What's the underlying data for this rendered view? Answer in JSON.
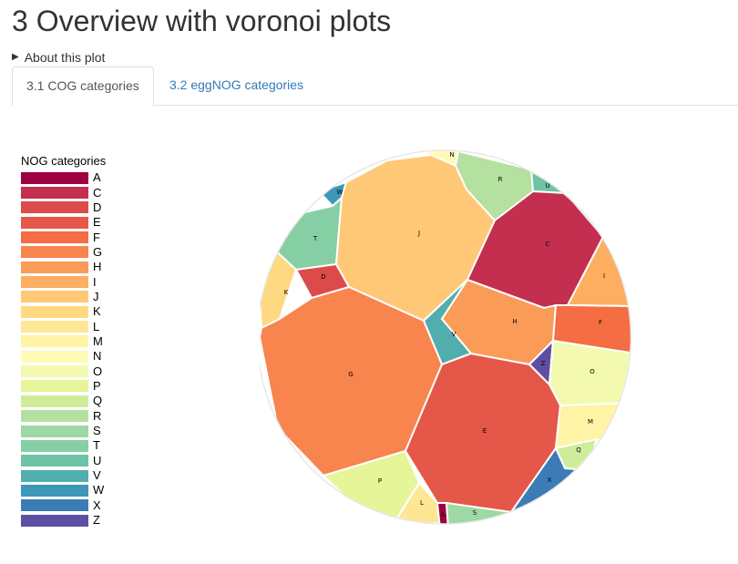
{
  "page": {
    "title": "3 Overview with voronoi plots",
    "details_label": "About this plot"
  },
  "tabs": [
    {
      "label": "3.1 COG categories",
      "active": true
    },
    {
      "label": "3.2 eggNOG categories",
      "active": false
    }
  ],
  "legend": {
    "title": "NOG categories",
    "items": [
      {
        "label": "A",
        "color": "#9e0142"
      },
      {
        "label": "C",
        "color": "#c42e4f"
      },
      {
        "label": "D",
        "color": "#dd4a4c"
      },
      {
        "label": "E",
        "color": "#e55749"
      },
      {
        "label": "F",
        "color": "#f46d43"
      },
      {
        "label": "G",
        "color": "#f8844e"
      },
      {
        "label": "H",
        "color": "#fa9b57"
      },
      {
        "label": "I",
        "color": "#fdae61"
      },
      {
        "label": "J",
        "color": "#fec877"
      },
      {
        "label": "K",
        "color": "#fed982"
      },
      {
        "label": "L",
        "color": "#fee794"
      },
      {
        "label": "M",
        "color": "#fff3a6"
      },
      {
        "label": "N",
        "color": "#fffbb6"
      },
      {
        "label": "O",
        "color": "#f3fab0"
      },
      {
        "label": "P",
        "color": "#e6f598"
      },
      {
        "label": "Q",
        "color": "#cfec9a"
      },
      {
        "label": "R",
        "color": "#b4e0a0"
      },
      {
        "label": "S",
        "color": "#9ed8a4"
      },
      {
        "label": "T",
        "color": "#86cfa5"
      },
      {
        "label": "U",
        "color": "#6cc3a6"
      },
      {
        "label": "V",
        "color": "#52aeae"
      },
      {
        "label": "W",
        "color": "#3e96b8"
      },
      {
        "label": "X",
        "color": "#3b7cb6"
      },
      {
        "label": "Z",
        "color": "#5e4fa2"
      }
    ]
  },
  "voronoi_cells": [
    {
      "label": "N",
      "color": "#fffbb6"
    },
    {
      "label": "R",
      "color": "#b4e0a0"
    },
    {
      "label": "U",
      "color": "#6cc3a6"
    },
    {
      "label": "W",
      "color": "#3e96b8"
    },
    {
      "label": "T",
      "color": "#86cfa5"
    },
    {
      "label": "J",
      "color": "#fec877"
    },
    {
      "label": "C",
      "color": "#c42e4f"
    },
    {
      "label": "I",
      "color": "#fdae61"
    },
    {
      "label": "K",
      "color": "#fed982"
    },
    {
      "label": "D",
      "color": "#dd4a4c"
    },
    {
      "label": "H",
      "color": "#fa9b57"
    },
    {
      "label": "F",
      "color": "#f46d43"
    },
    {
      "label": "V",
      "color": "#52aeae"
    },
    {
      "label": "Z",
      "color": "#5e4fa2"
    },
    {
      "label": "O",
      "color": "#f3fab0"
    },
    {
      "label": "G",
      "color": "#f8844e"
    },
    {
      "label": "E",
      "color": "#e55749"
    },
    {
      "label": "M",
      "color": "#fff3a6"
    },
    {
      "label": "Q",
      "color": "#cfec9a"
    },
    {
      "label": "X",
      "color": "#3b7cb6"
    },
    {
      "label": "P",
      "color": "#e6f598"
    },
    {
      "label": "L",
      "color": "#fee794"
    },
    {
      "label": "A",
      "color": "#9e0142"
    },
    {
      "label": "S",
      "color": "#9ed8a4"
    }
  ]
}
